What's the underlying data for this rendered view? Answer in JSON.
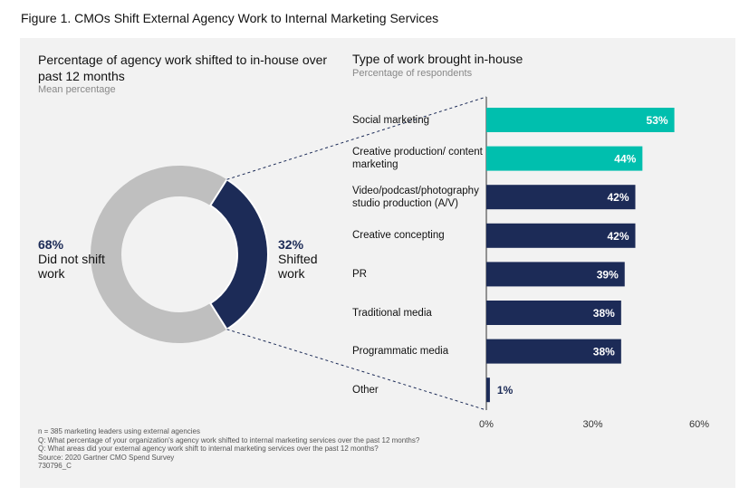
{
  "figure_title": "Figure 1. CMOs Shift External Agency Work to Internal Marketing Services",
  "colors": {
    "navy": "#1c2b57",
    "teal": "#00bfae",
    "gray": "#bfbfbf",
    "panel": "#f2f2f2"
  },
  "chart_data": [
    {
      "type": "pie",
      "title": "Percentage of agency work shifted to in-house over past 12 months",
      "subtitle": "Mean percentage",
      "slices": [
        {
          "label": "Shifted work",
          "pct_text": "32%",
          "value": 32
        },
        {
          "label": "Did not shift work",
          "pct_text": "68%",
          "value": 68
        }
      ]
    },
    {
      "type": "bar",
      "orientation": "horizontal",
      "title": "Type of work brought in-house",
      "subtitle": "Percentage of respondents",
      "categories": [
        "Social marketing",
        "Creative production/ content marketing",
        "Video/podcast/photography studio production (A/V)",
        "Creative concepting",
        "PR",
        "Traditional media",
        "Programmatic media",
        "Other"
      ],
      "values": [
        53,
        44,
        42,
        42,
        39,
        38,
        38,
        1
      ],
      "value_labels": [
        "53%",
        "44%",
        "42%",
        "42%",
        "39%",
        "38%",
        "38%",
        "1%"
      ],
      "highlight": [
        true,
        true,
        false,
        false,
        false,
        false,
        false,
        false
      ],
      "xlim": [
        0,
        60
      ],
      "xticks": [
        "0%",
        "30%",
        "60%"
      ],
      "grid": false
    }
  ],
  "notes": [
    "n = 385 marketing leaders using external agencies",
    "Q: What percentage of your organization's agency work shifted to internal marketing services over the past 12 months?",
    "Q: What areas did your external agency work shift to internal marketing services over the past 12 months?",
    "Source: 2020 Gartner CMO Spend Survey",
    "730796_C"
  ]
}
